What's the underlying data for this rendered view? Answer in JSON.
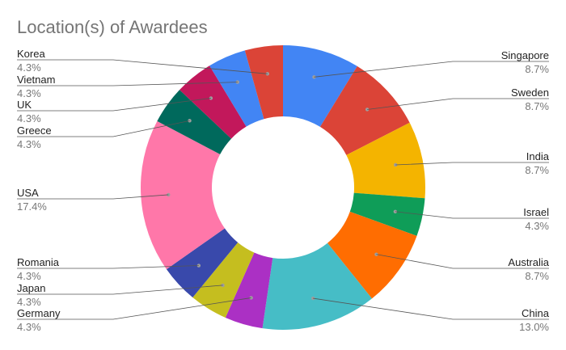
{
  "chart_data": {
    "type": "pie",
    "variant": "donut",
    "title": "Location(s) of Awardees",
    "slices": [
      {
        "name": "Singapore",
        "value": 8.7,
        "label": "8.7%",
        "color": "#4285F4",
        "side": "right"
      },
      {
        "name": "Sweden",
        "value": 8.7,
        "label": "8.7%",
        "color": "#DB4437",
        "side": "right"
      },
      {
        "name": "India",
        "value": 8.7,
        "label": "8.7%",
        "color": "#F4B400",
        "side": "right"
      },
      {
        "name": "Israel",
        "value": 4.3,
        "label": "4.3%",
        "color": "#0F9D58",
        "side": "right"
      },
      {
        "name": "Australia",
        "value": 8.7,
        "label": "8.7%",
        "color": "#FF6D01",
        "side": "right"
      },
      {
        "name": "China",
        "value": 13.0,
        "label": "13.0%",
        "color": "#46BDC6",
        "side": "right"
      },
      {
        "name": "Germany",
        "value": 4.3,
        "label": "4.3%",
        "color": "#AB30C4",
        "side": "left"
      },
      {
        "name": "Japan",
        "value": 4.3,
        "label": "4.3%",
        "color": "#C5BE1F",
        "side": "left"
      },
      {
        "name": "Romania",
        "value": 4.3,
        "label": "4.3%",
        "color": "#3949AB",
        "side": "left"
      },
      {
        "name": "USA",
        "value": 17.4,
        "label": "17.4%",
        "color": "#FF77A9",
        "side": "left"
      },
      {
        "name": "Greece",
        "value": 4.3,
        "label": "4.3%",
        "color": "#00695C",
        "side": "left"
      },
      {
        "name": "UK",
        "value": 4.3,
        "label": "4.3%",
        "color": "#C2185B",
        "side": "left"
      },
      {
        "name": "Vietnam",
        "value": 4.3,
        "label": "4.3%",
        "color": "#4285F4",
        "side": "left"
      },
      {
        "name": "Korea",
        "value": 4.3,
        "label": "4.3%",
        "color": "#DB4437",
        "side": "left"
      }
    ]
  }
}
